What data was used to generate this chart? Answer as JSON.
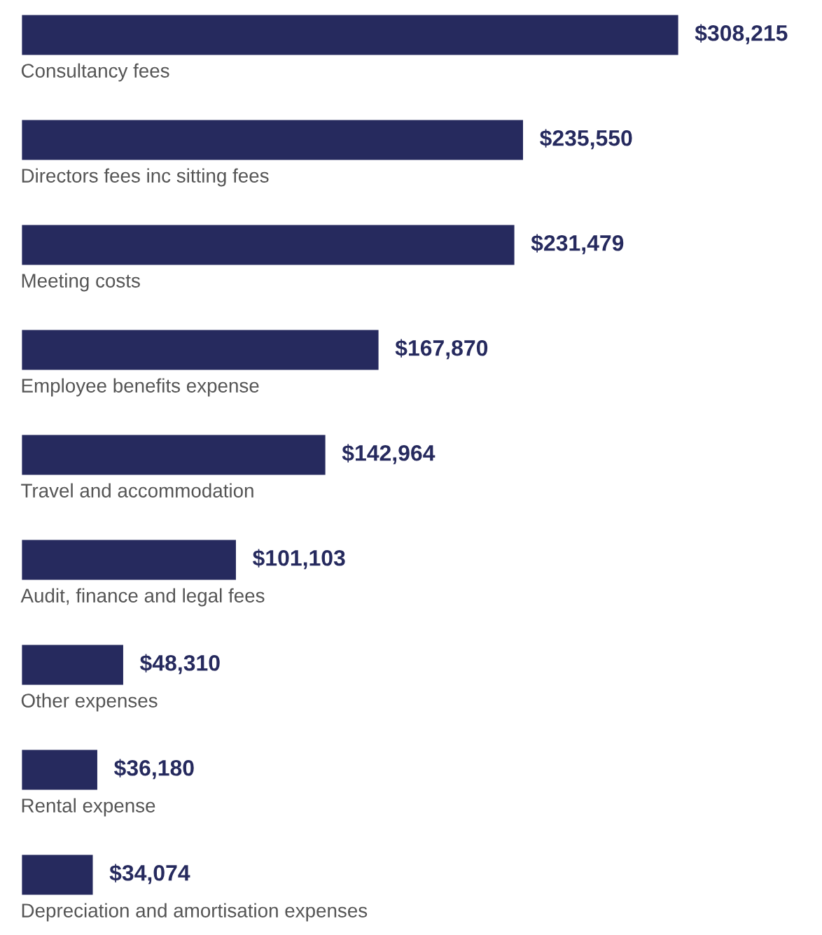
{
  "chart_data": {
    "type": "bar",
    "orientation": "horizontal",
    "color": "#262a5e",
    "categories": [
      "Consultancy fees",
      "Directors fees inc sitting fees",
      "Meeting costs",
      "Employee benefits expense",
      "Travel and accommodation",
      "Audit, finance and legal fees",
      "Other expenses",
      "Rental expense",
      "Depreciation and amortisation expenses"
    ],
    "values": [
      308215,
      235550,
      231479,
      167870,
      142964,
      101103,
      48310,
      36180,
      34074
    ],
    "value_labels": [
      "$308,215",
      "$235,550",
      "$231,479",
      "$167,870",
      "$142,964",
      "$101,103",
      "$48,310",
      "$36,180",
      "$34,074"
    ],
    "legend": false
  }
}
